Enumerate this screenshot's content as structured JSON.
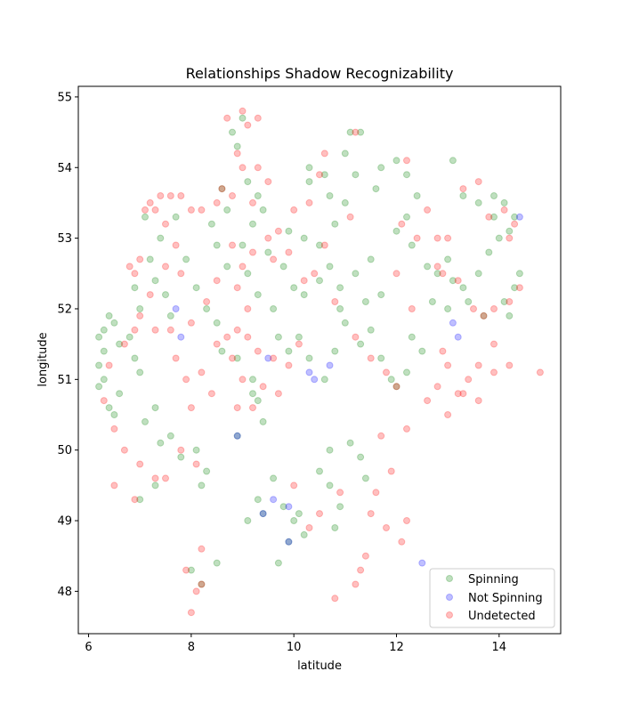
{
  "chart_data": {
    "type": "scatter",
    "title": "Relationships Shadow Recognizability",
    "xlabel": "latitude",
    "ylabel": "longitude",
    "xlim": [
      5.8,
      15.2
    ],
    "ylim": [
      47.4,
      55.15
    ],
    "xticks": [
      6,
      8,
      10,
      12,
      14
    ],
    "yticks": [
      48,
      49,
      50,
      51,
      52,
      53,
      54,
      55
    ],
    "grid": false,
    "legend_position": "lower right",
    "marker_opacity": 0.25,
    "series": [
      {
        "name": "Spinning",
        "color": "#008000",
        "points": [
          [
            6.2,
            51.6
          ],
          [
            6.3,
            51.7
          ],
          [
            6.5,
            51.8
          ],
          [
            6.6,
            51.5
          ],
          [
            6.3,
            51.4
          ],
          [
            6.2,
            51.2
          ],
          [
            6.3,
            51.0
          ],
          [
            6.2,
            50.9
          ],
          [
            6.4,
            50.6
          ],
          [
            6.5,
            50.5
          ],
          [
            6.6,
            50.8
          ],
          [
            6.4,
            51.9
          ],
          [
            6.8,
            51.6
          ],
          [
            6.9,
            51.3
          ],
          [
            7.0,
            51.1
          ],
          [
            7.1,
            50.4
          ],
          [
            7.3,
            50.6
          ],
          [
            7.4,
            50.1
          ],
          [
            7.6,
            50.2
          ],
          [
            7.8,
            49.9
          ],
          [
            8.1,
            50.0
          ],
          [
            8.3,
            49.7
          ],
          [
            8.2,
            49.5
          ],
          [
            7.3,
            49.5
          ],
          [
            7.0,
            49.3
          ],
          [
            7.6,
            51.9
          ],
          [
            7.5,
            52.2
          ],
          [
            7.9,
            52.7
          ],
          [
            8.1,
            52.3
          ],
          [
            8.3,
            52.0
          ],
          [
            8.5,
            51.8
          ],
          [
            8.6,
            51.4
          ],
          [
            8.9,
            51.3
          ],
          [
            9.2,
            51.0
          ],
          [
            9.3,
            50.7
          ],
          [
            9.4,
            50.4
          ],
          [
            9.2,
            50.8
          ],
          [
            8.9,
            50.2
          ],
          [
            9.1,
            52.5
          ],
          [
            9.3,
            52.2
          ],
          [
            9.6,
            52.0
          ],
          [
            9.7,
            51.6
          ],
          [
            9.9,
            51.4
          ],
          [
            10.1,
            51.6
          ],
          [
            10.3,
            51.3
          ],
          [
            10.6,
            51.0
          ],
          [
            10.8,
            51.4
          ],
          [
            11.0,
            51.8
          ],
          [
            11.3,
            51.5
          ],
          [
            11.5,
            51.7
          ],
          [
            11.7,
            51.3
          ],
          [
            11.9,
            51.0
          ],
          [
            10.0,
            52.3
          ],
          [
            10.2,
            52.2
          ],
          [
            10.5,
            52.4
          ],
          [
            10.7,
            52.6
          ],
          [
            10.9,
            52.3
          ],
          [
            11.2,
            52.5
          ],
          [
            11.5,
            52.7
          ],
          [
            11.7,
            52.2
          ],
          [
            11.4,
            52.1
          ],
          [
            10.9,
            52.0
          ],
          [
            9.8,
            52.6
          ],
          [
            9.5,
            52.8
          ],
          [
            9.9,
            53.1
          ],
          [
            10.2,
            53.0
          ],
          [
            10.5,
            52.9
          ],
          [
            10.8,
            53.2
          ],
          [
            11.0,
            53.5
          ],
          [
            11.2,
            53.9
          ],
          [
            11.0,
            54.2
          ],
          [
            11.1,
            54.5
          ],
          [
            11.3,
            54.5
          ],
          [
            10.6,
            53.9
          ],
          [
            10.3,
            53.8
          ],
          [
            10.7,
            53.6
          ],
          [
            11.6,
            53.7
          ],
          [
            11.7,
            54.0
          ],
          [
            12.0,
            54.1
          ],
          [
            12.2,
            53.9
          ],
          [
            12.4,
            53.6
          ],
          [
            12.2,
            53.3
          ],
          [
            12.0,
            53.1
          ],
          [
            12.3,
            52.9
          ],
          [
            12.6,
            52.6
          ],
          [
            12.8,
            52.5
          ],
          [
            13.0,
            52.7
          ],
          [
            13.1,
            52.4
          ],
          [
            13.3,
            52.3
          ],
          [
            13.6,
            52.5
          ],
          [
            13.8,
            52.8
          ],
          [
            14.0,
            53.0
          ],
          [
            14.2,
            53.1
          ],
          [
            14.4,
            52.5
          ],
          [
            14.3,
            52.3
          ],
          [
            14.1,
            52.1
          ],
          [
            14.2,
            51.9
          ],
          [
            13.7,
            51.9
          ],
          [
            13.4,
            52.1
          ],
          [
            13.0,
            52.0
          ],
          [
            12.7,
            52.1
          ],
          [
            12.3,
            51.6
          ],
          [
            12.5,
            51.4
          ],
          [
            12.2,
            51.1
          ],
          [
            12.0,
            50.9
          ],
          [
            13.1,
            54.1
          ],
          [
            13.3,
            53.6
          ],
          [
            13.6,
            53.5
          ],
          [
            13.9,
            53.6
          ],
          [
            14.1,
            53.5
          ],
          [
            14.3,
            53.3
          ],
          [
            13.9,
            53.3
          ],
          [
            10.3,
            54.0
          ],
          [
            9.0,
            54.7
          ],
          [
            8.8,
            54.5
          ],
          [
            8.9,
            54.3
          ],
          [
            9.1,
            53.8
          ],
          [
            9.3,
            53.6
          ],
          [
            9.4,
            53.4
          ],
          [
            9.2,
            53.2
          ],
          [
            9.0,
            52.9
          ],
          [
            8.7,
            52.6
          ],
          [
            8.5,
            52.9
          ],
          [
            8.4,
            53.2
          ],
          [
            8.7,
            53.4
          ],
          [
            8.6,
            53.7
          ],
          [
            7.7,
            53.3
          ],
          [
            7.4,
            53.0
          ],
          [
            7.2,
            52.7
          ],
          [
            7.3,
            52.4
          ],
          [
            7.0,
            52.0
          ],
          [
            6.9,
            52.3
          ],
          [
            7.1,
            53.3
          ],
          [
            9.8,
            49.2
          ],
          [
            10.0,
            49.0
          ],
          [
            10.2,
            48.8
          ],
          [
            10.1,
            49.1
          ],
          [
            9.9,
            48.7
          ],
          [
            9.7,
            48.4
          ],
          [
            10.5,
            49.7
          ],
          [
            10.7,
            49.5
          ],
          [
            10.9,
            49.2
          ],
          [
            10.8,
            48.9
          ],
          [
            9.6,
            49.6
          ],
          [
            9.3,
            49.3
          ],
          [
            9.4,
            49.1
          ],
          [
            9.1,
            49.0
          ],
          [
            8.0,
            48.3
          ],
          [
            8.2,
            48.1
          ],
          [
            8.5,
            48.4
          ],
          [
            11.1,
            50.1
          ],
          [
            10.7,
            50.0
          ],
          [
            11.3,
            49.9
          ],
          [
            11.4,
            49.6
          ]
        ]
      },
      {
        "name": "Not Spinning",
        "color": "#0000ff",
        "points": [
          [
            7.7,
            52.0
          ],
          [
            7.8,
            51.6
          ],
          [
            9.4,
            49.1
          ],
          [
            9.6,
            49.3
          ],
          [
            9.9,
            49.2
          ],
          [
            9.9,
            48.7
          ],
          [
            10.3,
            51.1
          ],
          [
            10.4,
            51.0
          ],
          [
            10.7,
            51.2
          ],
          [
            13.1,
            51.8
          ],
          [
            13.2,
            51.6
          ],
          [
            14.4,
            53.3
          ],
          [
            12.5,
            48.4
          ],
          [
            8.9,
            50.2
          ],
          [
            9.5,
            51.3
          ]
        ]
      },
      {
        "name": "Undetected",
        "color": "#ff0000",
        "points": [
          [
            6.8,
            52.6
          ],
          [
            6.9,
            52.5
          ],
          [
            7.0,
            52.7
          ],
          [
            7.1,
            53.4
          ],
          [
            7.2,
            53.5
          ],
          [
            7.4,
            53.6
          ],
          [
            7.6,
            53.6
          ],
          [
            7.8,
            53.6
          ],
          [
            8.0,
            53.4
          ],
          [
            8.2,
            53.4
          ],
          [
            8.5,
            53.5
          ],
          [
            8.6,
            53.7
          ],
          [
            8.8,
            53.6
          ],
          [
            9.0,
            54.0
          ],
          [
            8.9,
            54.2
          ],
          [
            9.1,
            54.6
          ],
          [
            9.3,
            54.7
          ],
          [
            8.7,
            54.7
          ],
          [
            9.0,
            54.8
          ],
          [
            9.3,
            54.0
          ],
          [
            9.5,
            53.8
          ],
          [
            9.2,
            53.5
          ],
          [
            7.3,
            53.4
          ],
          [
            7.5,
            53.2
          ],
          [
            7.7,
            52.9
          ],
          [
            7.5,
            52.6
          ],
          [
            7.8,
            52.5
          ],
          [
            7.2,
            52.2
          ],
          [
            7.0,
            51.9
          ],
          [
            6.9,
            51.7
          ],
          [
            6.7,
            51.5
          ],
          [
            6.4,
            51.2
          ],
          [
            6.3,
            50.7
          ],
          [
            6.5,
            50.3
          ],
          [
            6.7,
            50.0
          ],
          [
            6.5,
            49.5
          ],
          [
            6.9,
            49.3
          ],
          [
            7.0,
            49.8
          ],
          [
            7.3,
            49.6
          ],
          [
            7.5,
            49.6
          ],
          [
            7.8,
            50.0
          ],
          [
            8.1,
            49.8
          ],
          [
            8.0,
            50.6
          ],
          [
            7.9,
            51.0
          ],
          [
            8.2,
            51.1
          ],
          [
            8.4,
            50.8
          ],
          [
            8.5,
            51.5
          ],
          [
            8.7,
            51.6
          ],
          [
            8.9,
            51.7
          ],
          [
            8.8,
            51.3
          ],
          [
            9.1,
            51.6
          ],
          [
            9.3,
            51.4
          ],
          [
            9.0,
            51.0
          ],
          [
            9.4,
            50.9
          ],
          [
            9.6,
            51.3
          ],
          [
            9.9,
            51.2
          ],
          [
            10.1,
            51.5
          ],
          [
            9.7,
            50.8
          ],
          [
            9.2,
            50.6
          ],
          [
            8.9,
            50.6
          ],
          [
            9.1,
            52.0
          ],
          [
            8.9,
            52.3
          ],
          [
            9.0,
            52.6
          ],
          [
            9.2,
            52.8
          ],
          [
            8.8,
            52.9
          ],
          [
            8.5,
            52.4
          ],
          [
            8.3,
            52.1
          ],
          [
            8.0,
            51.8
          ],
          [
            7.7,
            51.3
          ],
          [
            7.6,
            51.7
          ],
          [
            7.3,
            51.7
          ],
          [
            11.1,
            53.3
          ],
          [
            10.6,
            52.9
          ],
          [
            10.2,
            52.4
          ],
          [
            10.4,
            52.5
          ],
          [
            10.8,
            52.1
          ],
          [
            11.2,
            51.6
          ],
          [
            11.5,
            51.3
          ],
          [
            11.8,
            51.1
          ],
          [
            12.0,
            50.9
          ],
          [
            12.2,
            50.3
          ],
          [
            11.7,
            50.2
          ],
          [
            11.9,
            49.7
          ],
          [
            11.6,
            49.4
          ],
          [
            11.5,
            49.1
          ],
          [
            11.8,
            48.9
          ],
          [
            12.1,
            48.7
          ],
          [
            12.2,
            49.0
          ],
          [
            11.4,
            48.5
          ],
          [
            11.3,
            48.3
          ],
          [
            11.2,
            48.1
          ],
          [
            10.8,
            47.9
          ],
          [
            8.2,
            48.6
          ],
          [
            7.9,
            48.3
          ],
          [
            8.0,
            47.7
          ],
          [
            8.1,
            48.0
          ],
          [
            8.2,
            48.1
          ],
          [
            10.0,
            49.5
          ],
          [
            10.5,
            49.1
          ],
          [
            10.9,
            49.4
          ],
          [
            10.3,
            48.9
          ],
          [
            12.1,
            53.2
          ],
          [
            12.4,
            53.0
          ],
          [
            12.8,
            52.6
          ],
          [
            12.9,
            52.5
          ],
          [
            13.2,
            52.4
          ],
          [
            13.5,
            52.0
          ],
          [
            13.7,
            51.9
          ],
          [
            13.9,
            52.0
          ],
          [
            14.2,
            52.1
          ],
          [
            14.4,
            52.3
          ],
          [
            14.3,
            53.2
          ],
          [
            14.1,
            53.4
          ],
          [
            13.8,
            53.3
          ],
          [
            14.2,
            53.0
          ],
          [
            13.0,
            53.0
          ],
          [
            13.3,
            53.7
          ],
          [
            13.6,
            53.8
          ],
          [
            13.9,
            51.5
          ],
          [
            13.6,
            51.2
          ],
          [
            13.4,
            51.0
          ],
          [
            13.2,
            50.8
          ],
          [
            13.6,
            50.7
          ],
          [
            13.9,
            51.1
          ],
          [
            14.2,
            51.2
          ],
          [
            14.8,
            51.1
          ],
          [
            13.0,
            51.2
          ],
          [
            12.8,
            50.9
          ],
          [
            12.6,
            50.7
          ],
          [
            13.0,
            50.5
          ],
          [
            13.3,
            50.8
          ],
          [
            12.9,
            51.4
          ],
          [
            12.3,
            52.0
          ],
          [
            12.0,
            52.5
          ],
          [
            10.0,
            53.4
          ],
          [
            10.3,
            53.5
          ],
          [
            10.5,
            53.9
          ],
          [
            10.6,
            54.2
          ],
          [
            11.2,
            54.5
          ],
          [
            12.2,
            54.1
          ],
          [
            12.6,
            53.4
          ],
          [
            12.8,
            53.0
          ],
          [
            9.7,
            53.1
          ],
          [
            9.6,
            52.7
          ],
          [
            9.9,
            52.8
          ],
          [
            9.5,
            53.0
          ]
        ]
      }
    ]
  }
}
